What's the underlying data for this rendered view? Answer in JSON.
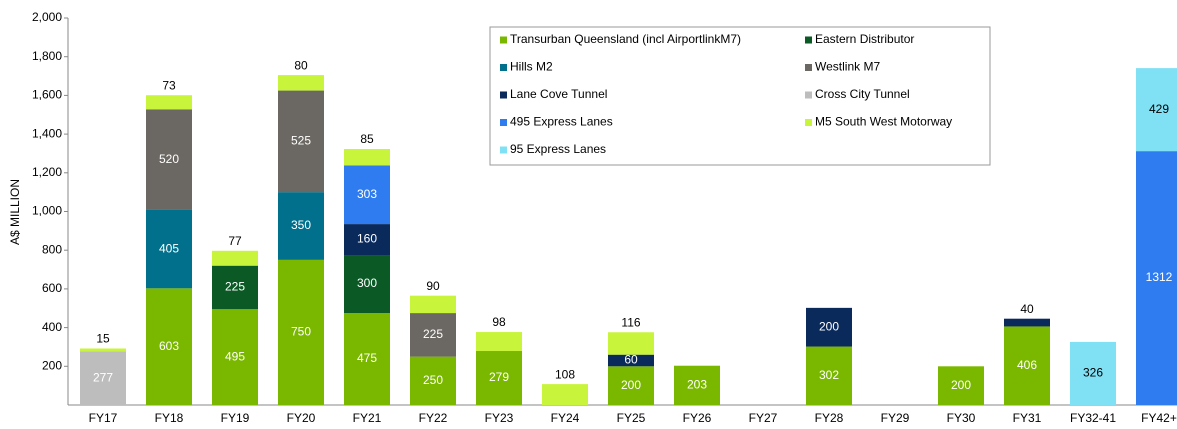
{
  "chart_data": {
    "type": "stacked_bar",
    "y_label": "A$ MILLION",
    "categories": [
      "FY17",
      "FY18",
      "FY19",
      "FY20",
      "FY21",
      "FY22",
      "FY23",
      "FY24",
      "FY25",
      "FY26",
      "FY27",
      "FY28",
      "FY29",
      "FY30",
      "FY31",
      "FY32-41",
      "FY42+"
    ],
    "series": [
      {
        "name": "Transurban Queensland (incl AirportlinkM7)",
        "color": "#7ab800",
        "values": [
          null,
          603,
          495,
          750,
          475,
          250,
          279,
          null,
          200,
          203,
          null,
          302,
          null,
          200,
          406,
          null,
          null
        ]
      },
      {
        "name": "Eastern Distributor",
        "color": "#0b5a26",
        "values": [
          null,
          null,
          225,
          null,
          300,
          null,
          null,
          null,
          null,
          null,
          null,
          null,
          null,
          null,
          null,
          null,
          null
        ]
      },
      {
        "name": "Hills M2",
        "color": "#00708c",
        "values": [
          null,
          405,
          null,
          350,
          null,
          null,
          null,
          null,
          null,
          null,
          null,
          null,
          null,
          null,
          null,
          null,
          null
        ]
      },
      {
        "name": "Westlink M7",
        "color": "#6b6762",
        "values": [
          null,
          520,
          null,
          525,
          null,
          225,
          null,
          null,
          null,
          null,
          null,
          null,
          null,
          null,
          null,
          null,
          null
        ]
      },
      {
        "name": "Lane Cove Tunnel",
        "color": "#0b2a5c",
        "values": [
          null,
          null,
          null,
          null,
          160,
          null,
          null,
          null,
          60,
          null,
          null,
          200,
          null,
          null,
          40,
          null,
          null
        ]
      },
      {
        "name": "Cross City Tunnel",
        "color": "#bdbdbd",
        "values": [
          277,
          null,
          null,
          null,
          null,
          null,
          null,
          null,
          null,
          null,
          null,
          null,
          null,
          null,
          null,
          null,
          null
        ]
      },
      {
        "name": "495 Express Lanes",
        "color": "#2e7cf0",
        "values": [
          null,
          null,
          null,
          null,
          303,
          null,
          null,
          null,
          null,
          null,
          null,
          null,
          null,
          null,
          null,
          null,
          1312
        ]
      },
      {
        "name": "M5 South West Motorway",
        "color": "#c8f43c",
        "values": [
          15,
          73,
          77,
          80,
          85,
          90,
          98,
          108,
          116,
          null,
          null,
          null,
          null,
          null,
          null,
          null,
          null
        ]
      },
      {
        "name": "95 Express Lanes",
        "color": "#80e0f4",
        "values": [
          null,
          null,
          null,
          null,
          null,
          null,
          null,
          null,
          null,
          null,
          null,
          null,
          null,
          null,
          null,
          326,
          429
        ]
      }
    ],
    "ylim": [
      0,
      2000
    ],
    "yticks": [
      200,
      400,
      600,
      800,
      {
        "value": 1000,
        "label": "1,000"
      },
      {
        "value": 1200,
        "label": "1,200"
      },
      {
        "value": 1400,
        "label": "1,400"
      },
      {
        "value": 1600,
        "label": "1,600"
      },
      {
        "value": 1800,
        "label": "1,800"
      },
      {
        "value": 2000,
        "label": "2,000"
      }
    ],
    "grid": false,
    "legend": "top"
  }
}
